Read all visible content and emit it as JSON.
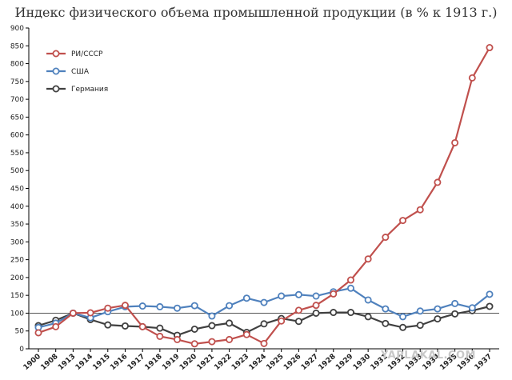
{
  "chart_data": {
    "type": "line",
    "title": "Индекс физического объема промышленной продукции (в % к 1913 г.)",
    "categories": [
      "1900",
      "1908",
      "1913",
      "1914",
      "1915",
      "1916",
      "1917",
      "1918",
      "1919",
      "1920",
      "1921",
      "1922",
      "1923",
      "1924",
      "1925",
      "1926",
      "1927",
      "1928",
      "1929",
      "1930",
      "1931",
      "1932",
      "1933",
      "1934",
      "1935",
      "1936",
      "1937"
    ],
    "yticks": [
      0,
      50,
      100,
      150,
      200,
      250,
      300,
      350,
      400,
      450,
      500,
      550,
      600,
      650,
      700,
      750,
      800,
      850,
      900
    ],
    "ylim": [
      0,
      900
    ],
    "reference_line": 100,
    "grid": false,
    "legend_position": "top-left",
    "series": [
      {
        "name": "РИ/СССР",
        "color": "#c0504d",
        "values": [
          45,
          62,
          100,
          101,
          114,
          122,
          62,
          35,
          26,
          14,
          20,
          26,
          40,
          15,
          78,
          108,
          122,
          154,
          193,
          252,
          313,
          360,
          390,
          467,
          578,
          760,
          845
        ]
      },
      {
        "name": "США",
        "color": "#4f81bd",
        "values": [
          60,
          72,
          100,
          87,
          104,
          118,
          120,
          118,
          114,
          121,
          92,
          121,
          142,
          130,
          148,
          152,
          148,
          160,
          170,
          137,
          112,
          90,
          106,
          112,
          127,
          115,
          153
        ]
      },
      {
        "name": "Германия",
        "color": "#404040",
        "values": [
          65,
          80,
          100,
          82,
          67,
          64,
          62,
          58,
          38,
          55,
          65,
          72,
          46,
          70,
          85,
          77,
          100,
          102,
          102,
          90,
          71,
          60,
          66,
          84,
          98,
          107,
          119
        ]
      }
    ]
  },
  "watermark": "YAPLAKAL.COM"
}
